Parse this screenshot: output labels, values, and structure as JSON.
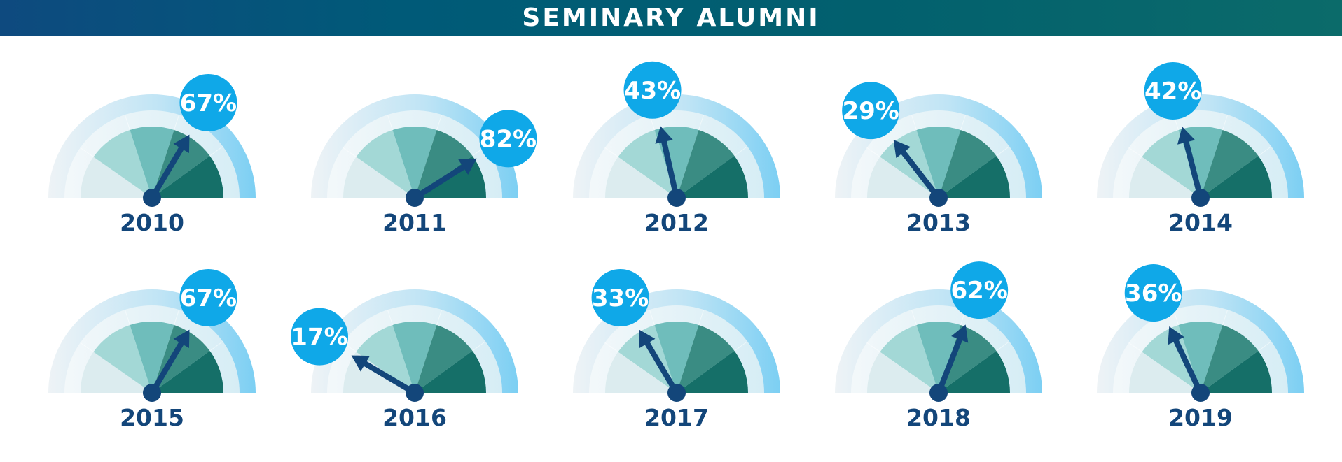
{
  "title": "SEMINARY ALUMNI",
  "colors": {
    "banner_start": "#0e4a7f",
    "banner_end": "#0b6b6a",
    "bubble": "#0fa8e8",
    "needle": "#13467a",
    "year_text": "#13467a",
    "outer_ring": "#7ccff3",
    "segments": [
      "#dcecef",
      "#a3d8d6",
      "#6fbdbb",
      "#3a8c83",
      "#156f68"
    ]
  },
  "chart_data": {
    "type": "gauge",
    "title": "SEMINARY ALUMNI",
    "unit": "%",
    "range": [
      0,
      100
    ],
    "gauges": [
      {
        "year": "2010",
        "value": 67,
        "label": "67%"
      },
      {
        "year": "2011",
        "value": 82,
        "label": "82%"
      },
      {
        "year": "2012",
        "value": 43,
        "label": "43%"
      },
      {
        "year": "2013",
        "value": 29,
        "label": "29%"
      },
      {
        "year": "2014",
        "value": 42,
        "label": "42%"
      },
      {
        "year": "2015",
        "value": 67,
        "label": "67%"
      },
      {
        "year": "2016",
        "value": 17,
        "label": "17%"
      },
      {
        "year": "2017",
        "value": 33,
        "label": "33%"
      },
      {
        "year": "2018",
        "value": 62,
        "label": "62%"
      },
      {
        "year": "2019",
        "value": 36,
        "label": "36%"
      }
    ]
  }
}
